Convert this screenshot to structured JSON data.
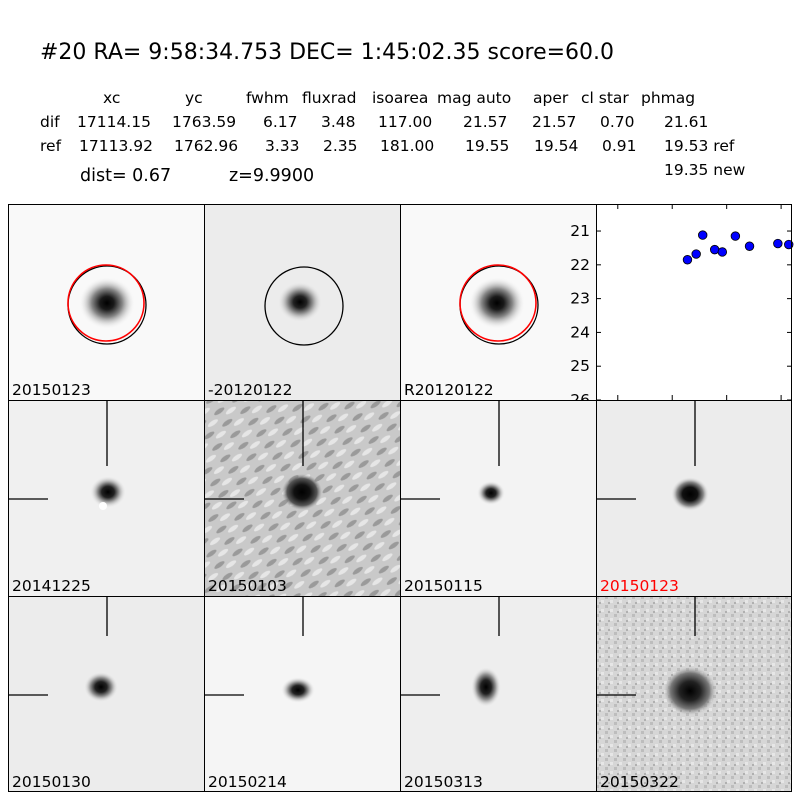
{
  "title": "#20   RA= 9:58:34.753 DEC= 1:45:02.35      score=60.0",
  "table": {
    "headers": [
      "xc",
      "yc",
      "fwhm",
      "fluxrad",
      "isoarea",
      "mag auto",
      "aper",
      "cl star",
      "phmag"
    ],
    "dif": [
      "dif",
      "17114.15",
      "1763.59",
      "6.17",
      "3.48",
      "117.00",
      "21.57",
      "21.57",
      "0.70",
      "21.61"
    ],
    "ref": [
      "ref",
      "17113.92",
      "1762.96",
      "3.33",
      "2.35",
      "181.00",
      "19.55",
      "19.54",
      "0.91",
      "19.53 ref"
    ]
  },
  "dist": "dist=  0.67",
  "z": "z=9.9900",
  "new_mag": "19.35 new",
  "top_panels": [
    {
      "label": "20150123"
    },
    {
      "label": "-20120122"
    },
    {
      "label": "R20120122"
    }
  ],
  "cutouts": [
    {
      "label": "20141225",
      "highlight": false
    },
    {
      "label": "20150103",
      "highlight": false
    },
    {
      "label": "20150115",
      "highlight": false
    },
    {
      "label": "20150123",
      "highlight": true
    },
    {
      "label": "20150130",
      "highlight": false
    },
    {
      "label": "20150214",
      "highlight": false
    },
    {
      "label": "20150313",
      "highlight": false
    },
    {
      "label": "20150322",
      "highlight": false
    }
  ],
  "chart_data": {
    "type": "scatter",
    "xlim": [
      -120,
      60
    ],
    "ylim": [
      26,
      20.2
    ],
    "x_ticks": [
      -100,
      -50,
      0,
      50
    ],
    "y_ticks": [
      21,
      22,
      23,
      24,
      25,
      26
    ],
    "series": [
      {
        "points": [
          {
            "x": -36,
            "y": 21.85
          },
          {
            "x": -28,
            "y": 21.68
          },
          {
            "x": -22,
            "y": 21.12
          },
          {
            "x": -11,
            "y": 21.55
          },
          {
            "x": -4,
            "y": 21.62
          },
          {
            "x": 8,
            "y": 21.15
          },
          {
            "x": 21,
            "y": 21.45
          },
          {
            "x": 47,
            "y": 21.37
          },
          {
            "x": 57,
            "y": 21.4
          }
        ],
        "color": "#0000ff"
      }
    ],
    "grid": false
  },
  "colors": {
    "highlight_label": "#ff0000",
    "circle_red": "#ff0000",
    "circle_black": "#000000",
    "marker": "#0000ff"
  }
}
